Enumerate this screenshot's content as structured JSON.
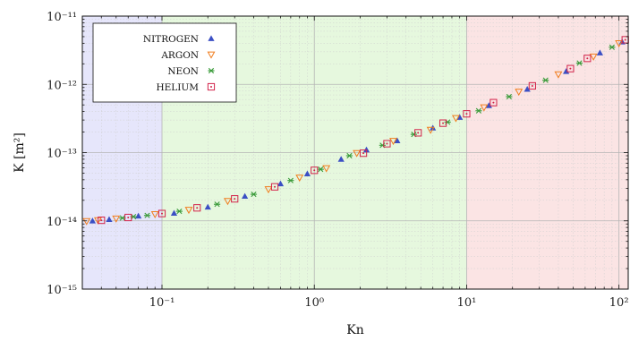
{
  "chart_data": {
    "type": "scatter",
    "title": "",
    "xlabel": "Kn",
    "ylabel": "K [m²]",
    "x_scale": "log",
    "y_scale": "log",
    "xlim": [
      0.03,
      115
    ],
    "ylim": [
      1e-15,
      1e-11
    ],
    "grid": true,
    "legend_position": "top-left",
    "x_ticks": [
      {
        "value": 0.1,
        "label": "10⁻¹"
      },
      {
        "value": 1,
        "label": "10⁰"
      },
      {
        "value": 10,
        "label": "10¹"
      },
      {
        "value": 100,
        "label": "10²"
      }
    ],
    "y_ticks": [
      {
        "value": 1e-15,
        "label": "10⁻¹⁵"
      },
      {
        "value": 1e-14,
        "label": "10⁻¹⁴"
      },
      {
        "value": 1e-13,
        "label": "10⁻¹³"
      },
      {
        "value": 1e-12,
        "label": "10⁻¹²"
      },
      {
        "value": 1e-11,
        "label": "10⁻¹¹"
      }
    ],
    "regions": [
      {
        "from": 0.03,
        "to": 0.1,
        "color": "#e6e6fb"
      },
      {
        "from": 0.1,
        "to": 10,
        "color": "#e6f8de"
      },
      {
        "from": 10,
        "to": 115,
        "color": "#fbe4e4"
      }
    ],
    "series": [
      {
        "name": "NITROGEN",
        "marker": "triangle-up",
        "color": "#3b4fc4",
        "points": [
          [
            0.035,
            1e-14
          ],
          [
            0.045,
            1.05e-14
          ],
          [
            0.07,
            1.18e-14
          ],
          [
            0.12,
            1.3e-14
          ],
          [
            0.2,
            1.6e-14
          ],
          [
            0.35,
            2.3e-14
          ],
          [
            0.6,
            3.5e-14
          ],
          [
            0.9,
            4.9e-14
          ],
          [
            1.5,
            8e-14
          ],
          [
            2.2,
            1.1e-13
          ],
          [
            3.5,
            1.5e-13
          ],
          [
            6,
            2.3e-13
          ],
          [
            9,
            3.3e-13
          ],
          [
            14,
            4.9e-13
          ],
          [
            25,
            8.5e-13
          ],
          [
            45,
            1.55e-12
          ],
          [
            75,
            2.9e-12
          ],
          [
            105,
            4.2e-12
          ]
        ]
      },
      {
        "name": "ARGON",
        "marker": "triangle-down",
        "color": "#f07d1e",
        "points": [
          [
            0.032,
            9.9e-15
          ],
          [
            0.038,
            1.02e-14
          ],
          [
            0.05,
            1.08e-14
          ],
          [
            0.09,
            1.25e-14
          ],
          [
            0.15,
            1.45e-14
          ],
          [
            0.27,
            1.95e-14
          ],
          [
            0.5,
            2.9e-14
          ],
          [
            0.8,
            4.3e-14
          ],
          [
            1.2,
            5.9e-14
          ],
          [
            1.9,
            9.8e-14
          ],
          [
            3.3,
            1.48e-13
          ],
          [
            5.8,
            2.15e-13
          ],
          [
            8.5,
            3.2e-13
          ],
          [
            13,
            4.6e-13
          ],
          [
            22,
            7.8e-13
          ],
          [
            40,
            1.4e-12
          ],
          [
            68,
            2.55e-12
          ],
          [
            100,
            4e-12
          ]
        ]
      },
      {
        "name": "NEON",
        "marker": "asterisk",
        "color": "#3a9b3a",
        "points": [
          [
            0.055,
            1.1e-14
          ],
          [
            0.065,
            1.15e-14
          ],
          [
            0.08,
            1.2e-14
          ],
          [
            0.13,
            1.38e-14
          ],
          [
            0.23,
            1.75e-14
          ],
          [
            0.4,
            2.45e-14
          ],
          [
            0.7,
            3.9e-14
          ],
          [
            1.1,
            5.7e-14
          ],
          [
            1.7,
            9e-14
          ],
          [
            2.8,
            1.28e-13
          ],
          [
            4.5,
            1.85e-13
          ],
          [
            7.5,
            2.8e-13
          ],
          [
            12,
            4.1e-13
          ],
          [
            19,
            6.6e-13
          ],
          [
            33,
            1.15e-12
          ],
          [
            55,
            2.05e-12
          ],
          [
            90,
            3.5e-12
          ]
        ]
      },
      {
        "name": "HELIUM",
        "marker": "square-dot",
        "color": "#d3234a",
        "points": [
          [
            0.04,
            1.02e-14
          ],
          [
            0.06,
            1.12e-14
          ],
          [
            0.1,
            1.28e-14
          ],
          [
            0.17,
            1.55e-14
          ],
          [
            0.3,
            2.1e-14
          ],
          [
            0.55,
            3.15e-14
          ],
          [
            1.0,
            5.5e-14
          ],
          [
            2.1,
            9.8e-14
          ],
          [
            3.0,
            1.35e-13
          ],
          [
            4.8,
            1.95e-13
          ],
          [
            7,
            2.7e-13
          ],
          [
            10,
            3.7e-13
          ],
          [
            15,
            5.4e-13
          ],
          [
            27,
            9.5e-13
          ],
          [
            48,
            1.7e-12
          ],
          [
            62,
            2.4e-12
          ],
          [
            110,
            4.5e-12
          ]
        ]
      }
    ]
  }
}
